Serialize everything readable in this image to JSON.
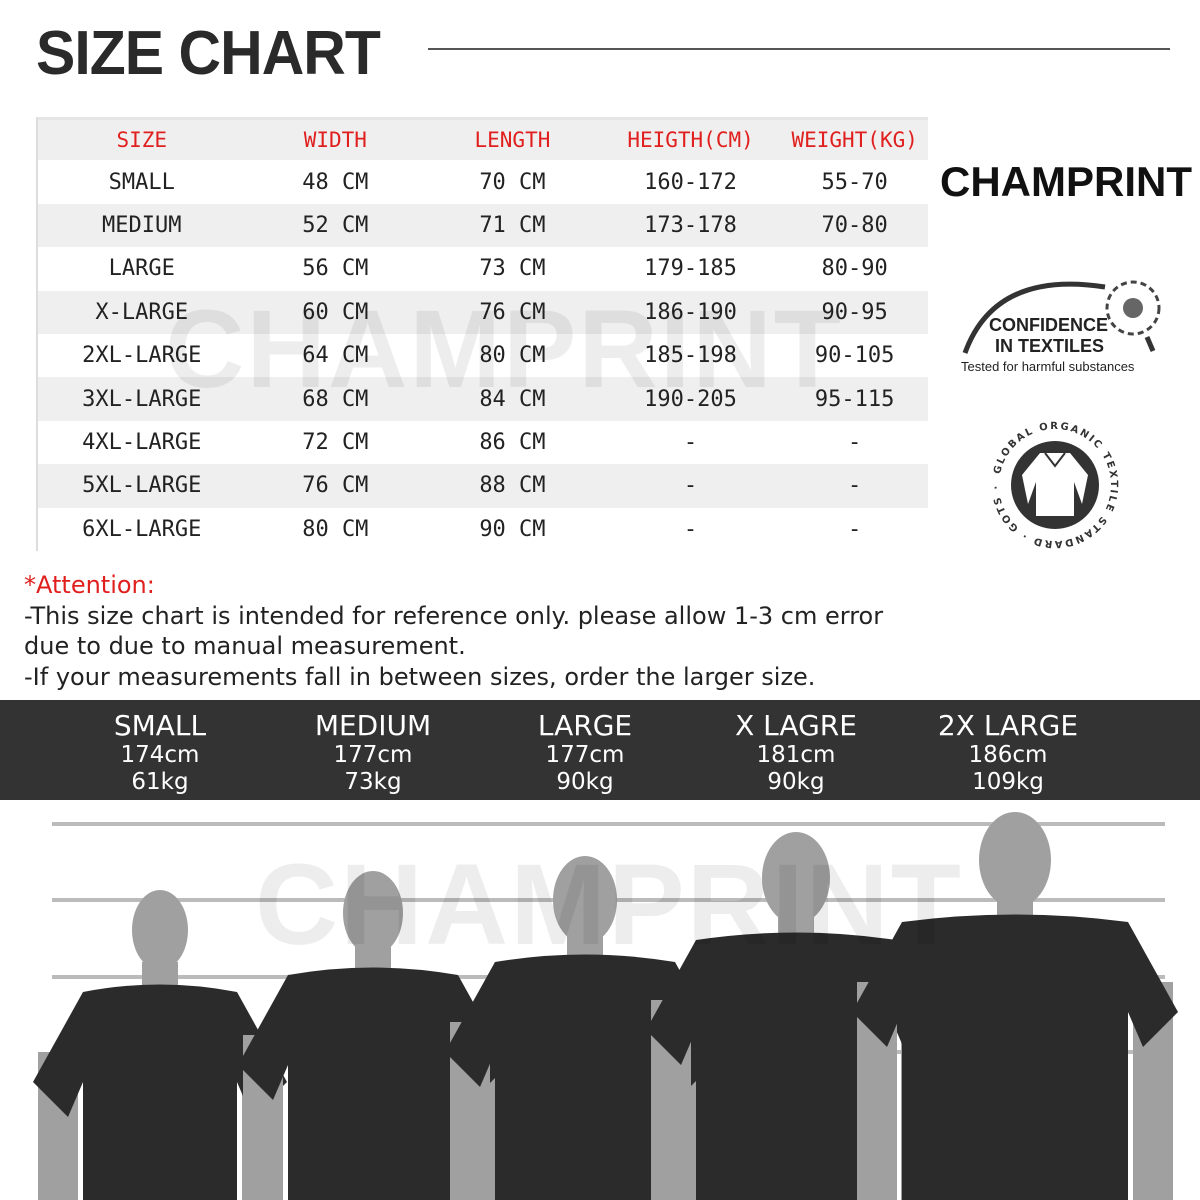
{
  "title": "SIZE CHART",
  "brand": "CHAMPRINT",
  "watermark": "CHAMPRINT",
  "table": {
    "headers": [
      "SIZE",
      "WIDTH",
      "LENGTH",
      "HEIGTH(CM)",
      "WEIGHT(KG)"
    ],
    "rows": [
      [
        "SMALL",
        "48 CM",
        "70 CM",
        "160-172",
        "55-70"
      ],
      [
        "MEDIUM",
        "52 CM",
        "71 CM",
        "173-178",
        "70-80"
      ],
      [
        "LARGE",
        "56 CM",
        "73 CM",
        "179-185",
        "80-90"
      ],
      [
        "X-LARGE",
        "60 CM",
        "76 CM",
        "186-190",
        "90-95"
      ],
      [
        "2XL-LARGE",
        "64 CM",
        "80 CM",
        "185-198",
        "90-105"
      ],
      [
        "3XL-LARGE",
        "68 CM",
        "84 CM",
        "190-205",
        "95-115"
      ],
      [
        "4XL-LARGE",
        "72 CM",
        "86 CM",
        "-",
        "-"
      ],
      [
        "5XL-LARGE",
        "76 CM",
        "88 CM",
        "-",
        "-"
      ],
      [
        "6XL-LARGE",
        "80 CM",
        "90 CM",
        "-",
        "-"
      ]
    ]
  },
  "logos": {
    "oeko": {
      "line1": "CONFIDENCE",
      "line2": "IN TEXTILES",
      "line3": "Tested for harmful substances"
    },
    "gots": {
      "ring": "GLOBAL ORGANIC TEXTILE STANDARD · GOTS ·"
    }
  },
  "attention": {
    "label": "*Attention:",
    "line1": "-This size chart is intended for reference only. please allow 1-3 cm error",
    "line2": "due to due to manual measurement.",
    "line3": "-If your measurements fall in between sizes, order the larger size."
  },
  "models": [
    {
      "size": "SMALL",
      "height": "174cm",
      "weight": "61kg"
    },
    {
      "size": "MEDIUM",
      "height": "177cm",
      "weight": "73kg"
    },
    {
      "size": "LARGE",
      "height": "177cm",
      "weight": "90kg"
    },
    {
      "size": "X LAGRE",
      "height": "181cm",
      "weight": "90kg"
    },
    {
      "size": "2X LARGE",
      "height": "186cm",
      "weight": "109kg"
    }
  ],
  "colors": {
    "accent": "#e0201e",
    "band": "#333333",
    "shirt": "#2b2b2b",
    "skin": "#a0a0a0"
  }
}
